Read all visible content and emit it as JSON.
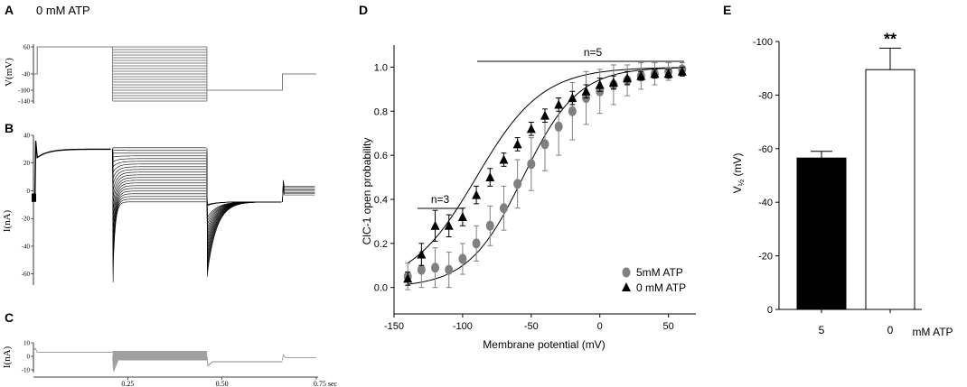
{
  "panel_letters": {
    "a": "A",
    "b": "B",
    "c": "C",
    "d": "D",
    "e": "E"
  },
  "chart_data": [
    {
      "panel": "A",
      "type": "line",
      "title": "0 mM ATP",
      "ylabel": "V(mV)",
      "yticks": [
        "60",
        "-40",
        "-100",
        "-140"
      ],
      "protocol_mV": {
        "pre": -40,
        "conditioning": 60,
        "steps_min": -140,
        "steps_max": 60,
        "step_count": 21,
        "tail": -100,
        "post": -40
      },
      "time_s": {
        "pre_end": 0.01,
        "cond_end": 0.21,
        "steps_end": 0.46,
        "tail_end": 0.66,
        "end": 0.75
      }
    },
    {
      "panel": "B",
      "type": "line",
      "ylabel": "I(nA)",
      "yticks": [
        "40",
        "20",
        "0",
        "-20",
        "-40",
        "-60"
      ],
      "ylim": [
        -68,
        40
      ],
      "steady_current_nA": {
        "at_60mV": 30,
        "at_-140mV": -8
      },
      "trace_count": 21
    },
    {
      "panel": "C",
      "type": "line",
      "ylabel": "I(nA)",
      "yticks": [
        "10",
        "0",
        "-10"
      ],
      "xticks": [
        "0.25",
        "0.50",
        "0.75 sec"
      ],
      "xlim": [
        0,
        0.75
      ]
    },
    {
      "panel": "D",
      "type": "scatter",
      "xlabel": "Membrane potential (mV)",
      "ylabel": "ClC-1 open probability",
      "xlim": [
        -150,
        70
      ],
      "ylim": [
        -0.12,
        1.1
      ],
      "xticks": [
        "-150",
        "-100",
        "-50",
        "0",
        "50"
      ],
      "yticks": [
        "0.0",
        "0.2",
        "0.4",
        "0.6",
        "0.8",
        "1.0"
      ],
      "annotations": [
        "n=3",
        "n=5"
      ],
      "series": [
        {
          "name": "5mM ATP",
          "marker": "circle",
          "color": "#808080",
          "x": [
            -140,
            -130,
            -120,
            -110,
            -100,
            -90,
            -80,
            -70,
            -60,
            -50,
            -40,
            -30,
            -20,
            -10,
            0,
            10,
            20,
            30,
            40,
            50,
            60
          ],
          "y": [
            0.05,
            0.08,
            0.09,
            0.08,
            0.13,
            0.2,
            0.28,
            0.36,
            0.47,
            0.56,
            0.65,
            0.73,
            0.8,
            0.86,
            0.89,
            0.92,
            0.94,
            0.96,
            0.97,
            0.98,
            0.99
          ],
          "err": [
            0.06,
            0.08,
            0.09,
            0.08,
            0.07,
            0.08,
            0.09,
            0.1,
            0.11,
            0.12,
            0.12,
            0.13,
            0.13,
            0.12,
            0.1,
            0.09,
            0.07,
            0.06,
            0.05,
            0.04,
            0.03
          ]
        },
        {
          "name": "0 mM ATP",
          "marker": "triangle",
          "color": "#000000",
          "x": [
            -140,
            -130,
            -120,
            -110,
            -100,
            -90,
            -80,
            -70,
            -60,
            -50,
            -40,
            -30,
            -20,
            -10,
            0,
            10,
            20,
            30,
            40,
            50,
            60
          ],
          "y": [
            0.04,
            0.15,
            0.28,
            0.28,
            0.32,
            0.42,
            0.5,
            0.58,
            0.65,
            0.72,
            0.78,
            0.83,
            0.86,
            0.89,
            0.92,
            0.93,
            0.95,
            0.96,
            0.97,
            0.97,
            0.98
          ],
          "err": [
            0.03,
            0.05,
            0.07,
            0.05,
            0.04,
            0.04,
            0.04,
            0.03,
            0.03,
            0.03,
            0.03,
            0.03,
            0.03,
            0.03,
            0.03,
            0.03,
            0.03,
            0.02,
            0.02,
            0.02,
            0.02
          ]
        }
      ],
      "fits": [
        {
          "name": "5mM ATP",
          "v_half": -56,
          "k": 20
        },
        {
          "name": "0 mM ATP",
          "v_half": -90,
          "k": 24
        }
      ]
    },
    {
      "panel": "E",
      "type": "bar",
      "categories": [
        "5",
        "0"
      ],
      "values": [
        -56.5,
        -89.5
      ],
      "errors": [
        2.5,
        8.0
      ],
      "colors": [
        "#000000",
        "#ffffff"
      ],
      "xlabel": "mM ATP",
      "ylabel_main": "V",
      "ylabel_sub": "½",
      "ylabel_unit": " (mV)",
      "ylim": [
        0,
        -100
      ],
      "yticks": [
        "-100",
        "-80",
        "-60",
        "-40",
        "-20",
        "0"
      ],
      "significance": "**"
    }
  ]
}
